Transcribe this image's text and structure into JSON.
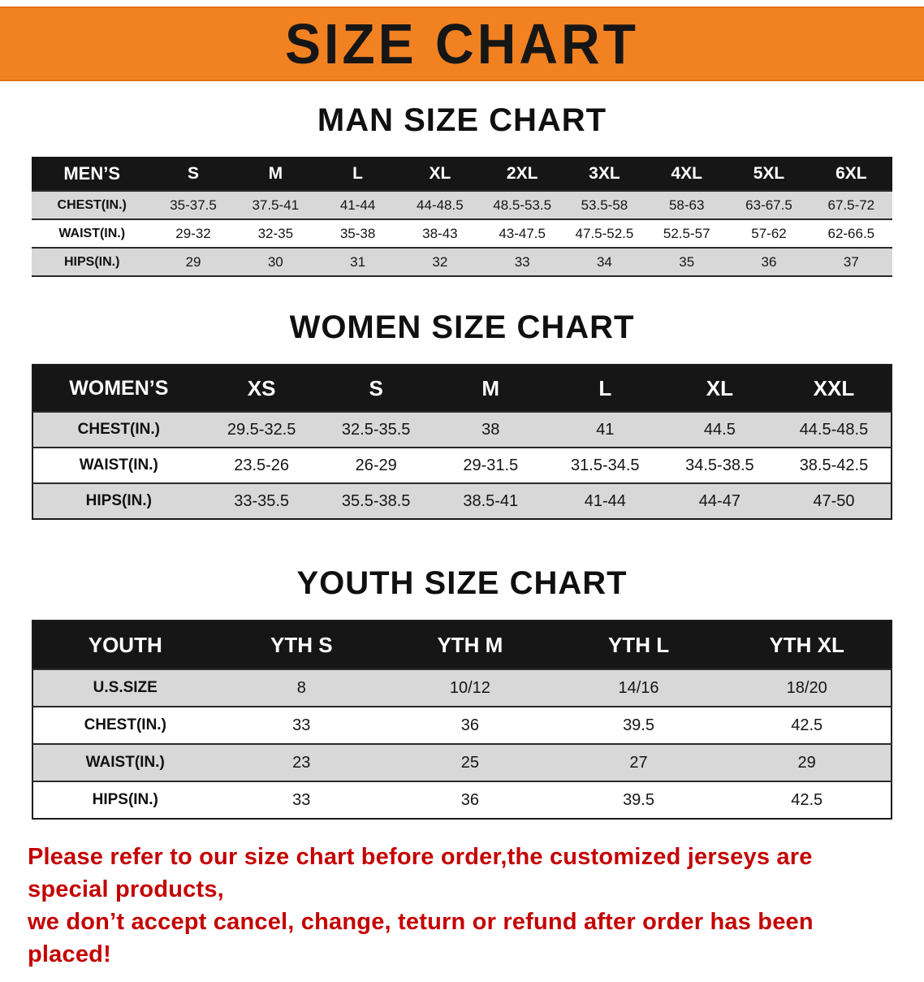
{
  "banner": {
    "title": "SIZE CHART",
    "bg_color": "#f28122",
    "text_color": "#161616"
  },
  "colors": {
    "header_bar": "#161616",
    "stripe_gray": "#d8d8d8",
    "disclaimer_red": "#c40000"
  },
  "chart_data": [
    {
      "type": "table",
      "title": "MAN SIZE CHART",
      "name": "mens-size-table",
      "style": "men",
      "columns": [
        "MEN’S",
        "S",
        "M",
        "L",
        "XL",
        "2XL",
        "3XL",
        "4XL",
        "5XL",
        "6XL"
      ],
      "rows": [
        {
          "label": "CHEST(IN.)",
          "values": [
            "35-37.5",
            "37.5-41",
            "41-44",
            "44-48.5",
            "48.5-53.5",
            "53.5-58",
            "58-63",
            "63-67.5",
            "67.5-72"
          ]
        },
        {
          "label": "WAIST(IN.)",
          "values": [
            "29-32",
            "32-35",
            "35-38",
            "38-43",
            "43-47.5",
            "47.5-52.5",
            "52.5-57",
            "57-62",
            "62-66.5"
          ]
        },
        {
          "label": "HIPS(IN.)",
          "values": [
            "29",
            "30",
            "31",
            "32",
            "33",
            "34",
            "35",
            "36",
            "37"
          ]
        }
      ]
    },
    {
      "type": "table",
      "title": "WOMEN SIZE CHART",
      "name": "womens-size-table",
      "style": "women",
      "columns": [
        "WOMEN’S",
        "XS",
        "S",
        "M",
        "L",
        "XL",
        "XXL"
      ],
      "rows": [
        {
          "label": "CHEST(IN.)",
          "values": [
            "29.5-32.5",
            "32.5-35.5",
            "38",
            "41",
            "44.5",
            "44.5-48.5"
          ]
        },
        {
          "label": "WAIST(IN.)",
          "values": [
            "23.5-26",
            "26-29",
            "29-31.5",
            "31.5-34.5",
            "34.5-38.5",
            "38.5-42.5"
          ]
        },
        {
          "label": "HIPS(IN.)",
          "values": [
            "33-35.5",
            "35.5-38.5",
            "38.5-41",
            "41-44",
            "44-47",
            "47-50"
          ]
        }
      ]
    },
    {
      "type": "table",
      "title": "YOUTH SIZE CHART",
      "name": "youth-size-table",
      "style": "youth",
      "columns": [
        "YOUTH",
        "YTH S",
        "YTH M",
        "YTH L",
        "YTH XL"
      ],
      "rows": [
        {
          "label": "U.S.SIZE",
          "values": [
            "8",
            "10/12",
            "14/16",
            "18/20"
          ]
        },
        {
          "label": "CHEST(IN.)",
          "values": [
            "33",
            "36",
            "39.5",
            "42.5"
          ]
        },
        {
          "label": "WAIST(IN.)",
          "values": [
            "23",
            "25",
            "27",
            "29"
          ]
        },
        {
          "label": "HIPS(IN.)",
          "values": [
            "33",
            "36",
            "39.5",
            "42.5"
          ]
        }
      ]
    }
  ],
  "disclaimer": {
    "lines": [
      "Please refer to our size chart before order,the customized jerseys are special products,",
      "we don’t accept cancel, change, teturn or refund after order has been placed!"
    ]
  }
}
